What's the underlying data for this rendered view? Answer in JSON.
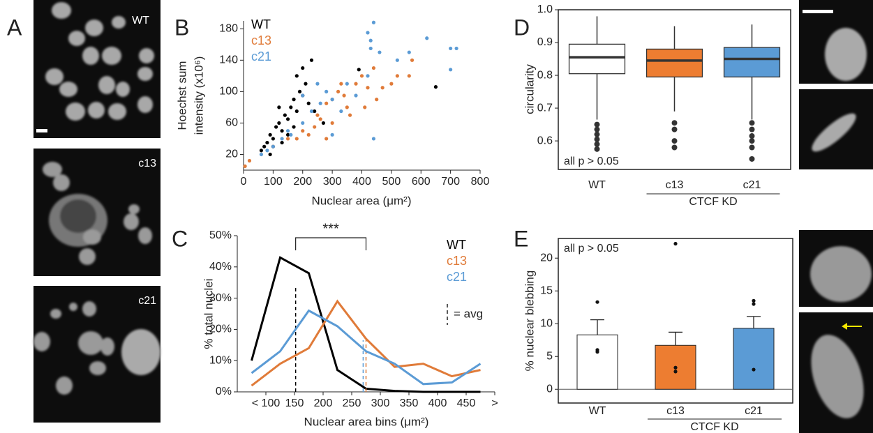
{
  "micrographs": {
    "panel": "A",
    "labels": [
      "WT",
      "c13",
      "c21"
    ]
  },
  "chart_data": [
    {
      "type": "scatter",
      "panel": "B",
      "xlabel": "Nuclear area (μm²)",
      "ylabel": [
        "Hoechst sum",
        "intensity (x10⁶)"
      ],
      "xlim": [
        0,
        800
      ],
      "xticks": [
        0,
        100,
        200,
        300,
        400,
        500,
        600,
        700,
        800
      ],
      "ylim": [
        0,
        190
      ],
      "yticks": [
        20,
        60,
        100,
        140,
        180
      ],
      "frame": false,
      "series": [
        {
          "name": "WT",
          "color": "#000000",
          "x": [
            60,
            70,
            80,
            90,
            100,
            110,
            120,
            130,
            140,
            150,
            160,
            170,
            180,
            190,
            200,
            210,
            220,
            130,
            100,
            150,
            180,
            230,
            200,
            170,
            120,
            650,
            390,
            270,
            90,
            240
          ],
          "values": [
            25,
            30,
            35,
            45,
            40,
            55,
            60,
            50,
            70,
            65,
            80,
            90,
            75,
            100,
            95,
            110,
            85,
            35,
            30,
            45,
            120,
            140,
            130,
            55,
            80,
            106,
            128,
            60,
            20,
            75
          ]
        },
        {
          "name": "c13",
          "color": "#e07b39",
          "x": [
            5,
            20,
            100,
            150,
            200,
            240,
            260,
            280,
            300,
            320,
            340,
            360,
            380,
            400,
            420,
            440,
            470,
            500,
            520,
            560,
            570,
            250,
            300,
            350,
            450,
            220,
            180,
            330,
            280,
            410
          ],
          "values": [
            5,
            12,
            30,
            40,
            50,
            55,
            65,
            85,
            90,
            100,
            95,
            70,
            110,
            120,
            105,
            130,
            105,
            110,
            120,
            120,
            140,
            70,
            60,
            80,
            90,
            45,
            40,
            110,
            40,
            80
          ]
        },
        {
          "name": "c21",
          "color": "#5b9bd5",
          "x": [
            60,
            80,
            100,
            130,
            160,
            200,
            230,
            260,
            280,
            300,
            330,
            350,
            380,
            420,
            430,
            440,
            420,
            430,
            460,
            520,
            560,
            620,
            700,
            720,
            700,
            440,
            200,
            250,
            300,
            150
          ],
          "values": [
            20,
            25,
            30,
            40,
            45,
            60,
            75,
            85,
            100,
            90,
            75,
            110,
            95,
            120,
            165,
            188,
            175,
            155,
            150,
            140,
            150,
            168,
            155,
            155,
            128,
            40,
            95,
            110,
            45,
            50
          ]
        }
      ]
    },
    {
      "type": "line",
      "panel": "C",
      "xlabel": "Nuclear area bins (μm²)",
      "ylabel": "% total nuclei",
      "xlim": [
        50,
        500
      ],
      "xticks": [
        {
          "value": 100,
          "label": "< 100"
        },
        150,
        200,
        250,
        300,
        350,
        400,
        450,
        {
          "value": 500,
          "label": ">"
        }
      ],
      "ylim": [
        0,
        50
      ],
      "yticks": [
        {
          "value": 0,
          "label": "0%"
        },
        {
          "value": 10,
          "label": "10%"
        },
        {
          "value": 20,
          "label": "20%"
        },
        {
          "value": 30,
          "label": "30%"
        },
        {
          "value": 40,
          "label": "40%"
        },
        {
          "value": 50,
          "label": "50%"
        }
      ],
      "frame": false,
      "significance": "***",
      "avg_label": "= avg",
      "x": [
        75,
        125,
        175,
        225,
        275,
        325,
        375,
        425,
        475
      ],
      "series": [
        {
          "name": "WT",
          "color": "#000000",
          "avg": 152,
          "values": [
            10,
            43,
            38,
            7,
            1,
            0.3,
            0,
            0,
            0
          ]
        },
        {
          "name": "c13",
          "color": "#e07b39",
          "avg": 275,
          "values": [
            2,
            9,
            14,
            29,
            17,
            8,
            9,
            5,
            7
          ]
        },
        {
          "name": "c21",
          "color": "#5b9bd5",
          "avg": 270,
          "values": [
            6,
            13,
            26,
            21,
            13,
            9,
            2.5,
            3,
            9
          ]
        }
      ]
    },
    {
      "type": "box",
      "panel": "D",
      "ylabel": "circularity",
      "annotation": "all p > 0.05",
      "group_label": "CTCF KD",
      "ylim": [
        0.513,
        1.0
      ],
      "yticks": [
        0.6,
        0.7,
        0.8,
        0.9,
        {
          "value": 1,
          "label": "1.0"
        }
      ],
      "frame": true,
      "categories": [
        "WT",
        "c13",
        "c21"
      ],
      "colors": [
        "#ffffff",
        "#ed7d31",
        "#5b9bd5"
      ],
      "boxes": [
        {
          "min": 0.665,
          "q1": 0.805,
          "median": 0.855,
          "q3": 0.895,
          "max": 0.98,
          "outliers": [
            0.65,
            0.635,
            0.62,
            0.605,
            0.59,
            0.575
          ]
        },
        {
          "min": 0.69,
          "q1": 0.795,
          "median": 0.845,
          "q3": 0.88,
          "max": 0.95,
          "outliers": [
            0.655,
            0.635,
            0.6,
            0.58
          ]
        },
        {
          "min": 0.665,
          "q1": 0.795,
          "median": 0.85,
          "q3": 0.885,
          "max": 0.955,
          "outliers": [
            0.655,
            0.635,
            0.615,
            0.6,
            0.58,
            0.545
          ]
        }
      ]
    },
    {
      "type": "bar",
      "panel": "E",
      "ylabel": "% nuclear blebbing",
      "annotation": "all p > 0.05",
      "group_label": "CTCF KD",
      "ylim": [
        -2.1,
        23
      ],
      "yticks": [
        0,
        5,
        10,
        15,
        20
      ],
      "frame": true,
      "categories": [
        "WT",
        "c13",
        "c21"
      ],
      "colors": [
        "#ffffff",
        "#ed7d31",
        "#5b9bd5"
      ],
      "values": [
        8.3,
        6.7,
        9.3
      ],
      "errors": [
        2.3,
        2.0,
        1.8
      ],
      "points": [
        [
          13.3,
          6,
          5.7
        ],
        [
          22.2,
          3.3,
          2.7
        ],
        [
          13.5,
          13,
          3
        ]
      ]
    }
  ]
}
